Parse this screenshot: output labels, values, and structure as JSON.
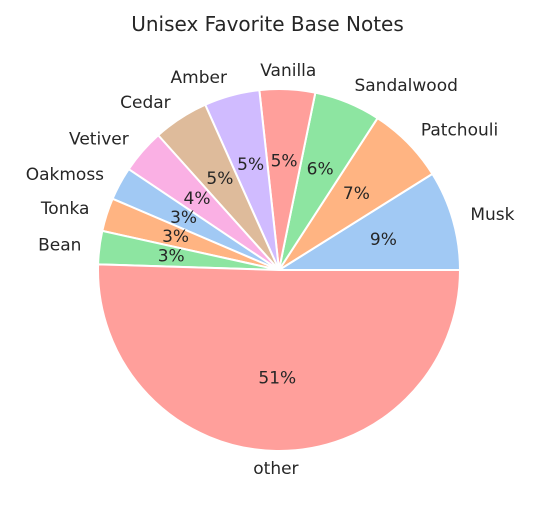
{
  "chart_data": {
    "type": "pie",
    "title": "Unisex Favorite Base Notes",
    "start_angle_deg": 0,
    "direction": "counterclockwise",
    "slices": [
      {
        "label": "Musk",
        "value": 9,
        "pct_text": "9%",
        "color": "#a1c9f4"
      },
      {
        "label": "Patchouli",
        "value": 7,
        "pct_text": "7%",
        "color": "#ffb482"
      },
      {
        "label": "Sandalwood",
        "value": 6,
        "pct_text": "6%",
        "color": "#8de5a1"
      },
      {
        "label": "Vanilla",
        "value": 5,
        "pct_text": "5%",
        "color": "#ff9f9b"
      },
      {
        "label": "Amber",
        "value": 5,
        "pct_text": "5%",
        "color": "#d0bbff"
      },
      {
        "label": "Cedar",
        "value": 5,
        "pct_text": "5%",
        "color": "#debb9b"
      },
      {
        "label": "Vetiver",
        "value": 4,
        "pct_text": "4%",
        "color": "#fab0e4"
      },
      {
        "label": "Oakmoss",
        "value": 3,
        "pct_text": "3%",
        "color": "#a1c9f4"
      },
      {
        "label": "Tonka",
        "value": 3,
        "pct_text": "3%",
        "color": "#ffb482"
      },
      {
        "label": "Bean",
        "value": 3,
        "pct_text": "3%",
        "color": "#8de5a1"
      },
      {
        "label": "other",
        "value": 51,
        "pct_text": "51%",
        "color": "#ff9f9b"
      }
    ]
  }
}
